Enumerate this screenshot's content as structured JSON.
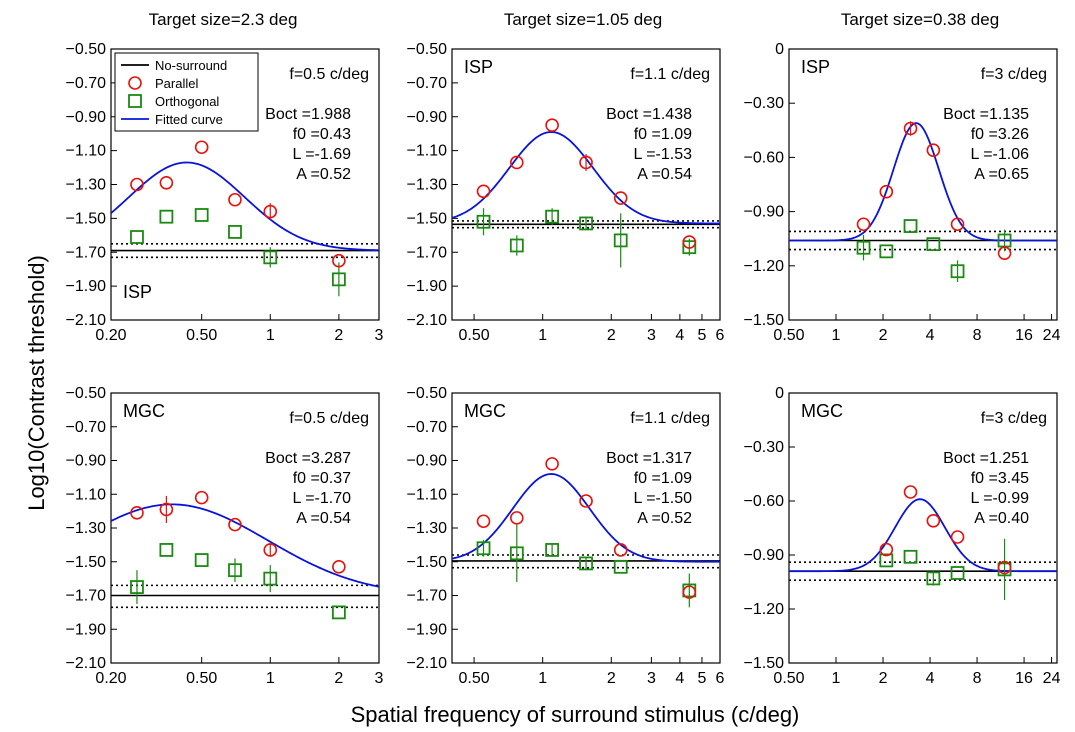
{
  "figure": {
    "column_titles": [
      "Target size=2.3 deg",
      "Target size=1.05 deg",
      "Target size=0.38 deg"
    ],
    "ylabel": "Log10(Contrast threshold)",
    "xlabel": "Spatial frequency of surround stimulus (c/deg)",
    "colors": {
      "parallel": "#e8120c",
      "orthogonal": "#1a8a12",
      "fitted": "#0a14d8",
      "nosurround": "#000000"
    },
    "legend": [
      {
        "label": "No-surround",
        "kind": "solid-line"
      },
      {
        "label": "Parallel",
        "kind": "circle"
      },
      {
        "label": "Orthogonal",
        "kind": "square"
      },
      {
        "label": "Fitted curve",
        "kind": "blue-line"
      }
    ]
  },
  "chart_data": [
    {
      "type": "scatter",
      "panel": "top-left",
      "label": "ISP",
      "label_pos": "bottom-left",
      "freq_label": "f=0.5 c/deg",
      "params": [
        "Boct =1.988",
        "f0 =0.43",
        "L =-1.69",
        "A =0.52"
      ],
      "fit": {
        "Boct": 1.988,
        "f0": 0.43,
        "L": -1.69,
        "A": 0.52
      },
      "xscale": "log",
      "xlim": [
        0.2,
        3
      ],
      "xticks": [
        {
          "v": 0.2,
          "l": "0.20"
        },
        {
          "v": 0.5,
          "l": "0.50"
        },
        {
          "v": 1,
          "l": "1"
        },
        {
          "v": 2,
          "l": "2"
        },
        {
          "v": 3,
          "l": "3"
        }
      ],
      "ylim": [
        -2.1,
        -0.5
      ],
      "yticks": [
        {
          "v": -0.5,
          "l": "−0.50"
        },
        {
          "v": -0.7,
          "l": "−0.70"
        },
        {
          "v": -0.9,
          "l": "−0.90"
        },
        {
          "v": -1.1,
          "l": "−1.10"
        },
        {
          "v": -1.3,
          "l": "−1.30"
        },
        {
          "v": -1.5,
          "l": "−1.50"
        },
        {
          "v": -1.7,
          "l": "−1.70"
        },
        {
          "v": -1.9,
          "l": "−1.90"
        },
        {
          "v": -2.1,
          "l": "−2.10"
        }
      ],
      "nosurround": -1.69,
      "nosurround_ci": [
        -1.65,
        -1.73
      ],
      "parallel": [
        {
          "x": 0.26,
          "y": -1.3,
          "e": 0.0
        },
        {
          "x": 0.35,
          "y": -1.29,
          "e": 0.0
        },
        {
          "x": 0.5,
          "y": -1.08,
          "e": 0.0
        },
        {
          "x": 0.7,
          "y": -1.39,
          "e": 0.0
        },
        {
          "x": 1.0,
          "y": -1.46,
          "e": 0.05
        },
        {
          "x": 2.0,
          "y": -1.75,
          "e": 0.0
        }
      ],
      "orthogonal": [
        {
          "x": 0.26,
          "y": -1.61,
          "e": 0.0
        },
        {
          "x": 0.35,
          "y": -1.49,
          "e": 0.0
        },
        {
          "x": 0.5,
          "y": -1.48,
          "e": 0.0
        },
        {
          "x": 0.7,
          "y": -1.58,
          "e": 0.0
        },
        {
          "x": 1.0,
          "y": -1.73,
          "e": 0.06
        },
        {
          "x": 2.0,
          "y": -1.86,
          "e": 0.1
        }
      ]
    },
    {
      "type": "scatter",
      "panel": "top-middle",
      "label": "ISP",
      "label_pos": "top-left",
      "freq_label": "f=1.1 c/deg",
      "params": [
        "Boct =1.438",
        "f0 =1.09",
        "L =-1.53",
        "A =0.54"
      ],
      "fit": {
        "Boct": 1.438,
        "f0": 1.09,
        "L": -1.53,
        "A": 0.54
      },
      "xscale": "log",
      "xlim": [
        0.4,
        6
      ],
      "xticks": [
        {
          "v": 0.5,
          "l": "0.50"
        },
        {
          "v": 1,
          "l": "1"
        },
        {
          "v": 2,
          "l": "2"
        },
        {
          "v": 3,
          "l": "3"
        },
        {
          "v": 4,
          "l": "4"
        },
        {
          "v": 5,
          "l": "5"
        },
        {
          "v": 6,
          "l": "6"
        }
      ],
      "ylim": [
        -2.1,
        -0.5
      ],
      "yticks": [
        {
          "v": -0.5,
          "l": "−0.50"
        },
        {
          "v": -0.7,
          "l": "−0.70"
        },
        {
          "v": -0.9,
          "l": "−0.90"
        },
        {
          "v": -1.1,
          "l": "−1.10"
        },
        {
          "v": -1.3,
          "l": "−1.30"
        },
        {
          "v": -1.5,
          "l": "−1.50"
        },
        {
          "v": -1.7,
          "l": "−1.70"
        },
        {
          "v": -1.9,
          "l": "−1.90"
        },
        {
          "v": -2.1,
          "l": "−2.10"
        }
      ],
      "nosurround": -1.535,
      "nosurround_ci": [
        -1.515,
        -1.555
      ],
      "parallel": [
        {
          "x": 0.55,
          "y": -1.34,
          "e": 0.0
        },
        {
          "x": 0.77,
          "y": -1.17,
          "e": 0.0
        },
        {
          "x": 1.1,
          "y": -0.95,
          "e": 0.0
        },
        {
          "x": 1.55,
          "y": -1.17,
          "e": 0.05
        },
        {
          "x": 2.2,
          "y": -1.38,
          "e": 0.0
        },
        {
          "x": 4.4,
          "y": -1.64,
          "e": 0.0
        }
      ],
      "orthogonal": [
        {
          "x": 0.55,
          "y": -1.52,
          "e": 0.08
        },
        {
          "x": 0.77,
          "y": -1.66,
          "e": 0.06
        },
        {
          "x": 1.1,
          "y": -1.49,
          "e": 0.05
        },
        {
          "x": 1.55,
          "y": -1.53,
          "e": 0.04
        },
        {
          "x": 2.2,
          "y": -1.63,
          "e": 0.16
        },
        {
          "x": 4.4,
          "y": -1.67,
          "e": 0.05
        }
      ]
    },
    {
      "type": "scatter",
      "panel": "top-right",
      "label": "ISP",
      "label_pos": "top-left",
      "freq_label": "f=3 c/deg",
      "params": [
        "Boct =1.135",
        "f0 =3.26",
        "L =-1.06",
        "A =0.65"
      ],
      "fit": {
        "Boct": 1.135,
        "f0": 3.26,
        "L": -1.06,
        "A": 0.65
      },
      "xscale": "log",
      "xlim": [
        0.5,
        26
      ],
      "xticks": [
        {
          "v": 0.5,
          "l": "0.50"
        },
        {
          "v": 1,
          "l": "1"
        },
        {
          "v": 2,
          "l": "2"
        },
        {
          "v": 4,
          "l": "4"
        },
        {
          "v": 8,
          "l": "8"
        },
        {
          "v": 16,
          "l": "16"
        },
        {
          "v": 24,
          "l": "24"
        }
      ],
      "ylim": [
        -1.5,
        0
      ],
      "yticks": [
        {
          "v": 0,
          "l": "0"
        },
        {
          "v": -0.3,
          "l": "−0.30"
        },
        {
          "v": -0.6,
          "l": "−0.60"
        },
        {
          "v": -0.9,
          "l": "−0.90"
        },
        {
          "v": -1.2,
          "l": "−1.20"
        },
        {
          "v": -1.5,
          "l": "−1.50"
        }
      ],
      "nosurround": -1.06,
      "nosurround_ci": [
        -1.01,
        -1.11
      ],
      "parallel": [
        {
          "x": 1.5,
          "y": -0.97,
          "e": 0.0
        },
        {
          "x": 2.1,
          "y": -0.79,
          "e": 0.0
        },
        {
          "x": 3.0,
          "y": -0.44,
          "e": 0.04
        },
        {
          "x": 4.2,
          "y": -0.56,
          "e": 0.0
        },
        {
          "x": 6.0,
          "y": -0.97,
          "e": 0.0
        },
        {
          "x": 12.0,
          "y": -1.13,
          "e": 0.0
        }
      ],
      "orthogonal": [
        {
          "x": 1.5,
          "y": -1.1,
          "e": 0.07
        },
        {
          "x": 2.1,
          "y": -1.12,
          "e": 0.0
        },
        {
          "x": 3.0,
          "y": -0.98,
          "e": 0.0
        },
        {
          "x": 4.2,
          "y": -1.08,
          "e": 0.0
        },
        {
          "x": 6.0,
          "y": -1.23,
          "e": 0.06
        },
        {
          "x": 12.0,
          "y": -1.06,
          "e": 0.06
        }
      ]
    },
    {
      "type": "scatter",
      "panel": "bottom-left",
      "label": "MGC",
      "label_pos": "top-left",
      "freq_label": "f=0.5 c/deg",
      "params": [
        "Boct =3.287",
        "f0 =0.37",
        "L =-1.70",
        "A =0.54"
      ],
      "fit": {
        "Boct": 3.287,
        "f0": 0.37,
        "L": -1.7,
        "A": 0.54
      },
      "xscale": "log",
      "xlim": [
        0.2,
        3
      ],
      "xticks": [
        {
          "v": 0.2,
          "l": "0.20"
        },
        {
          "v": 0.5,
          "l": "0.50"
        },
        {
          "v": 1,
          "l": "1"
        },
        {
          "v": 2,
          "l": "2"
        },
        {
          "v": 3,
          "l": "3"
        }
      ],
      "ylim": [
        -2.1,
        -0.5
      ],
      "yticks": [
        {
          "v": -0.5,
          "l": "−0.50"
        },
        {
          "v": -0.7,
          "l": "−0.70"
        },
        {
          "v": -0.9,
          "l": "−0.90"
        },
        {
          "v": -1.1,
          "l": "−1.10"
        },
        {
          "v": -1.3,
          "l": "−1.30"
        },
        {
          "v": -1.5,
          "l": "−1.50"
        },
        {
          "v": -1.7,
          "l": "−1.70"
        },
        {
          "v": -1.9,
          "l": "−1.90"
        },
        {
          "v": -2.1,
          "l": "−2.10"
        }
      ],
      "nosurround": -1.7,
      "nosurround_ci": [
        -1.64,
        -1.77
      ],
      "parallel": [
        {
          "x": 0.26,
          "y": -1.21,
          "e": 0.0
        },
        {
          "x": 0.35,
          "y": -1.19,
          "e": 0.08
        },
        {
          "x": 0.5,
          "y": -1.12,
          "e": 0.0
        },
        {
          "x": 0.7,
          "y": -1.28,
          "e": 0.0
        },
        {
          "x": 1.0,
          "y": -1.43,
          "e": 0.04
        },
        {
          "x": 2.0,
          "y": -1.53,
          "e": 0.0
        }
      ],
      "orthogonal": [
        {
          "x": 0.26,
          "y": -1.65,
          "e": 0.1
        },
        {
          "x": 0.35,
          "y": -1.43,
          "e": 0.0
        },
        {
          "x": 0.5,
          "y": -1.49,
          "e": 0.0
        },
        {
          "x": 0.7,
          "y": -1.55,
          "e": 0.07
        },
        {
          "x": 1.0,
          "y": -1.6,
          "e": 0.08
        },
        {
          "x": 2.0,
          "y": -1.8,
          "e": 0.0
        }
      ]
    },
    {
      "type": "scatter",
      "panel": "bottom-middle",
      "label": "MGC",
      "label_pos": "top-left",
      "freq_label": "f=1.1 c/deg",
      "params": [
        "Boct =1.317",
        "f0 =1.09",
        "L =-1.50",
        "A =0.52"
      ],
      "fit": {
        "Boct": 1.317,
        "f0": 1.09,
        "L": -1.5,
        "A": 0.52
      },
      "xscale": "log",
      "xlim": [
        0.4,
        6
      ],
      "xticks": [
        {
          "v": 0.5,
          "l": "0.50"
        },
        {
          "v": 1,
          "l": "1"
        },
        {
          "v": 2,
          "l": "2"
        },
        {
          "v": 3,
          "l": "3"
        },
        {
          "v": 4,
          "l": "4"
        },
        {
          "v": 5,
          "l": "5"
        },
        {
          "v": 6,
          "l": "6"
        }
      ],
      "ylim": [
        -2.1,
        -0.5
      ],
      "yticks": [
        {
          "v": -0.5,
          "l": "−0.50"
        },
        {
          "v": -0.7,
          "l": "−0.70"
        },
        {
          "v": -0.9,
          "l": "−0.90"
        },
        {
          "v": -1.1,
          "l": "−1.10"
        },
        {
          "v": -1.3,
          "l": "−1.30"
        },
        {
          "v": -1.5,
          "l": "−1.50"
        },
        {
          "v": -1.7,
          "l": "−1.70"
        },
        {
          "v": -1.9,
          "l": "−1.90"
        },
        {
          "v": -2.1,
          "l": "−2.10"
        }
      ],
      "nosurround": -1.495,
      "nosurround_ci": [
        -1.46,
        -1.535
      ],
      "parallel": [
        {
          "x": 0.55,
          "y": -1.26,
          "e": 0.0
        },
        {
          "x": 0.77,
          "y": -1.24,
          "e": 0.0
        },
        {
          "x": 1.1,
          "y": -0.92,
          "e": 0.0
        },
        {
          "x": 1.55,
          "y": -1.14,
          "e": 0.0
        },
        {
          "x": 2.2,
          "y": -1.43,
          "e": 0.0
        },
        {
          "x": 4.4,
          "y": -1.68,
          "e": 0.0
        }
      ],
      "orthogonal": [
        {
          "x": 0.55,
          "y": -1.42,
          "e": 0.05
        },
        {
          "x": 0.77,
          "y": -1.45,
          "e": 0.17
        },
        {
          "x": 1.1,
          "y": -1.43,
          "e": 0.04
        },
        {
          "x": 1.55,
          "y": -1.51,
          "e": 0.04
        },
        {
          "x": 2.2,
          "y": -1.53,
          "e": 0.0
        },
        {
          "x": 4.4,
          "y": -1.67,
          "e": 0.1
        }
      ]
    },
    {
      "type": "scatter",
      "panel": "bottom-right",
      "label": "MGC",
      "label_pos": "top-left",
      "freq_label": "f=3 c/deg",
      "params": [
        "Boct =1.251",
        "f0 =3.45",
        "L =-0.99",
        "A =0.40"
      ],
      "fit": {
        "Boct": 1.251,
        "f0": 3.45,
        "L": -0.99,
        "A": 0.4
      },
      "xscale": "log",
      "xlim": [
        0.5,
        26
      ],
      "xticks": [
        {
          "v": 0.5,
          "l": "0.50"
        },
        {
          "v": 1,
          "l": "1"
        },
        {
          "v": 2,
          "l": "2"
        },
        {
          "v": 4,
          "l": "4"
        },
        {
          "v": 8,
          "l": "8"
        },
        {
          "v": 16,
          "l": "16"
        },
        {
          "v": 24,
          "l": "24"
        }
      ],
      "ylim": [
        -1.5,
        0
      ],
      "yticks": [
        {
          "v": 0,
          "l": "0"
        },
        {
          "v": -0.3,
          "l": "−0.30"
        },
        {
          "v": -0.6,
          "l": "−0.60"
        },
        {
          "v": -0.9,
          "l": "−0.90"
        },
        {
          "v": -1.2,
          "l": "−1.20"
        },
        {
          "v": -1.5,
          "l": "−1.50"
        }
      ],
      "nosurround": -0.99,
      "nosurround_ci": [
        -0.94,
        -1.04
      ],
      "parallel": [
        {
          "x": 2.1,
          "y": -0.87,
          "e": 0.0
        },
        {
          "x": 3.0,
          "y": -0.55,
          "e": 0.0
        },
        {
          "x": 4.2,
          "y": -0.71,
          "e": 0.0
        },
        {
          "x": 6.0,
          "y": -0.8,
          "e": 0.0
        },
        {
          "x": 12.0,
          "y": -0.97,
          "e": 0.0
        }
      ],
      "orthogonal": [
        {
          "x": 2.1,
          "y": -0.93,
          "e": 0.0
        },
        {
          "x": 3.0,
          "y": -0.91,
          "e": 0.0
        },
        {
          "x": 4.2,
          "y": -1.03,
          "e": 0.04
        },
        {
          "x": 6.0,
          "y": -1.0,
          "e": 0.0
        },
        {
          "x": 12.0,
          "y": -0.98,
          "e": 0.17
        }
      ]
    }
  ]
}
